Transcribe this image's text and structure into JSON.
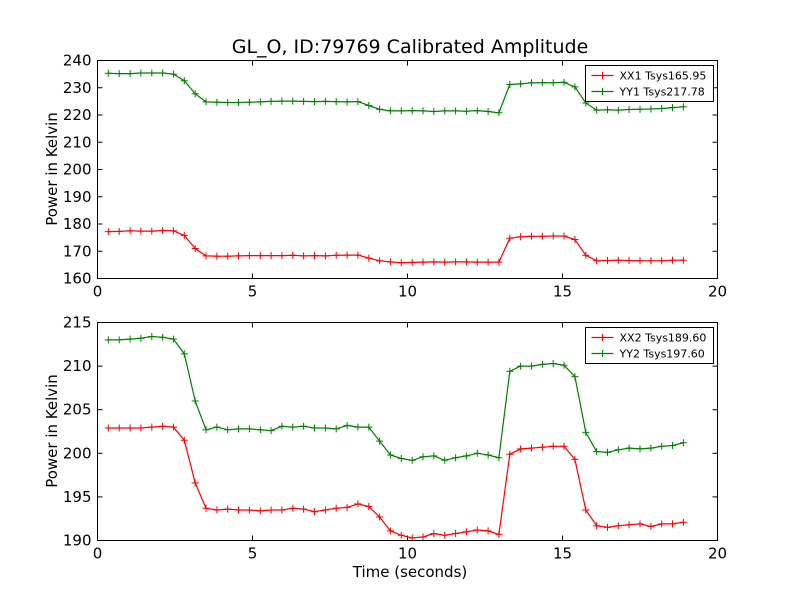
{
  "chart_data": [
    {
      "type": "line",
      "title": "GL_O, ID:79769 Calibrated Amplitude",
      "xlabel": "",
      "ylabel": "Power in Kelvin",
      "xlim": [
        0,
        20
      ],
      "ylim": [
        160,
        240
      ],
      "xticks": [
        0,
        5,
        10,
        15,
        20
      ],
      "yticks": [
        160,
        170,
        180,
        190,
        200,
        210,
        220,
        230,
        240
      ],
      "legend": "top-right",
      "grid": false,
      "x": [
        0.35,
        0.7,
        1.05,
        1.4,
        1.75,
        2.1,
        2.45,
        2.8,
        3.15,
        3.5,
        3.85,
        4.2,
        4.55,
        4.9,
        5.25,
        5.6,
        5.95,
        6.3,
        6.65,
        7.0,
        7.35,
        7.7,
        8.05,
        8.4,
        8.75,
        9.1,
        9.45,
        9.8,
        10.15,
        10.5,
        10.85,
        11.2,
        11.55,
        11.9,
        12.25,
        12.6,
        12.95,
        13.3,
        13.65,
        14.0,
        14.35,
        14.7,
        15.05,
        15.4,
        15.75,
        16.1,
        16.45,
        16.8,
        17.15,
        17.5,
        17.85,
        18.2,
        18.55,
        18.9
      ],
      "series": [
        {
          "name": "XX1 Tsys165.95",
          "color": "#ff0000",
          "values": [
            177.2,
            177.3,
            177.5,
            177.4,
            177.4,
            177.6,
            177.5,
            175.8,
            171.0,
            168.3,
            168.2,
            168.2,
            168.3,
            168.4,
            168.4,
            168.4,
            168.4,
            168.5,
            168.3,
            168.4,
            168.3,
            168.5,
            168.6,
            168.6,
            167.5,
            166.5,
            166.1,
            165.8,
            165.9,
            166.0,
            166.1,
            166.0,
            166.1,
            166.1,
            166.0,
            166.0,
            166.0,
            174.8,
            175.3,
            175.5,
            175.5,
            175.6,
            175.6,
            174.3,
            168.5,
            166.5,
            166.6,
            166.7,
            166.6,
            166.5,
            166.5,
            166.5,
            166.7,
            166.7
          ]
        },
        {
          "name": "YY1 Tsys217.78",
          "color": "#008000",
          "values": [
            235.3,
            235.2,
            235.2,
            235.4,
            235.4,
            235.4,
            235.0,
            232.6,
            227.8,
            224.8,
            224.7,
            224.6,
            224.6,
            224.7,
            224.8,
            225.0,
            225.1,
            225.1,
            225.0,
            224.9,
            225.0,
            224.9,
            224.8,
            224.9,
            223.5,
            222.1,
            221.5,
            221.5,
            221.6,
            221.5,
            221.3,
            221.5,
            221.5,
            221.4,
            221.6,
            221.3,
            220.8,
            231.2,
            231.4,
            231.8,
            231.9,
            231.8,
            232.0,
            230.3,
            224.4,
            221.8,
            221.9,
            221.8,
            222.0,
            222.1,
            222.2,
            222.4,
            222.7,
            223.0
          ]
        }
      ]
    },
    {
      "type": "line",
      "title": "",
      "xlabel": "Time (seconds)",
      "ylabel": "Power in Kelvin",
      "xlim": [
        0,
        20
      ],
      "ylim": [
        190,
        215
      ],
      "xticks": [
        0,
        5,
        10,
        15,
        20
      ],
      "yticks": [
        190,
        195,
        200,
        205,
        210,
        215
      ],
      "legend": "top-right",
      "grid": false,
      "x": [
        0.35,
        0.7,
        1.05,
        1.4,
        1.75,
        2.1,
        2.45,
        2.8,
        3.15,
        3.5,
        3.85,
        4.2,
        4.55,
        4.9,
        5.25,
        5.6,
        5.95,
        6.3,
        6.65,
        7.0,
        7.35,
        7.7,
        8.05,
        8.4,
        8.75,
        9.1,
        9.45,
        9.8,
        10.15,
        10.5,
        10.85,
        11.2,
        11.55,
        11.9,
        12.25,
        12.6,
        12.95,
        13.3,
        13.65,
        14.0,
        14.35,
        14.7,
        15.05,
        15.4,
        15.75,
        16.1,
        16.45,
        16.8,
        17.15,
        17.5,
        17.85,
        18.2,
        18.55,
        18.9
      ],
      "series": [
        {
          "name": "XX2 Tsys189.60",
          "color": "#ff0000",
          "values": [
            202.9,
            202.9,
            202.9,
            202.9,
            203.0,
            203.1,
            203.0,
            201.5,
            196.6,
            193.7,
            193.5,
            193.6,
            193.5,
            193.5,
            193.4,
            193.5,
            193.5,
            193.7,
            193.6,
            193.3,
            193.5,
            193.7,
            193.8,
            194.2,
            193.9,
            192.7,
            191.1,
            190.6,
            190.3,
            190.4,
            190.8,
            190.6,
            190.8,
            191.0,
            191.2,
            191.1,
            190.7,
            199.9,
            200.5,
            200.6,
            200.7,
            200.8,
            200.8,
            199.3,
            193.5,
            191.7,
            191.5,
            191.7,
            191.8,
            191.9,
            191.6,
            191.9,
            191.9,
            192.1
          ]
        },
        {
          "name": "YY2 Tsys197.60",
          "color": "#008000",
          "values": [
            213.0,
            213.0,
            213.1,
            213.2,
            213.4,
            213.3,
            213.1,
            211.4,
            206.0,
            202.7,
            203.0,
            202.7,
            202.8,
            202.8,
            202.7,
            202.6,
            203.1,
            203.0,
            203.1,
            202.9,
            202.9,
            202.8,
            203.2,
            203.0,
            203.0,
            201.4,
            199.8,
            199.4,
            199.2,
            199.6,
            199.7,
            199.2,
            199.5,
            199.7,
            200.0,
            199.8,
            199.5,
            209.4,
            210.0,
            210.0,
            210.2,
            210.3,
            210.1,
            208.8,
            202.4,
            200.2,
            200.1,
            200.4,
            200.6,
            200.5,
            200.6,
            200.8,
            200.9,
            201.2
          ]
        }
      ]
    }
  ]
}
